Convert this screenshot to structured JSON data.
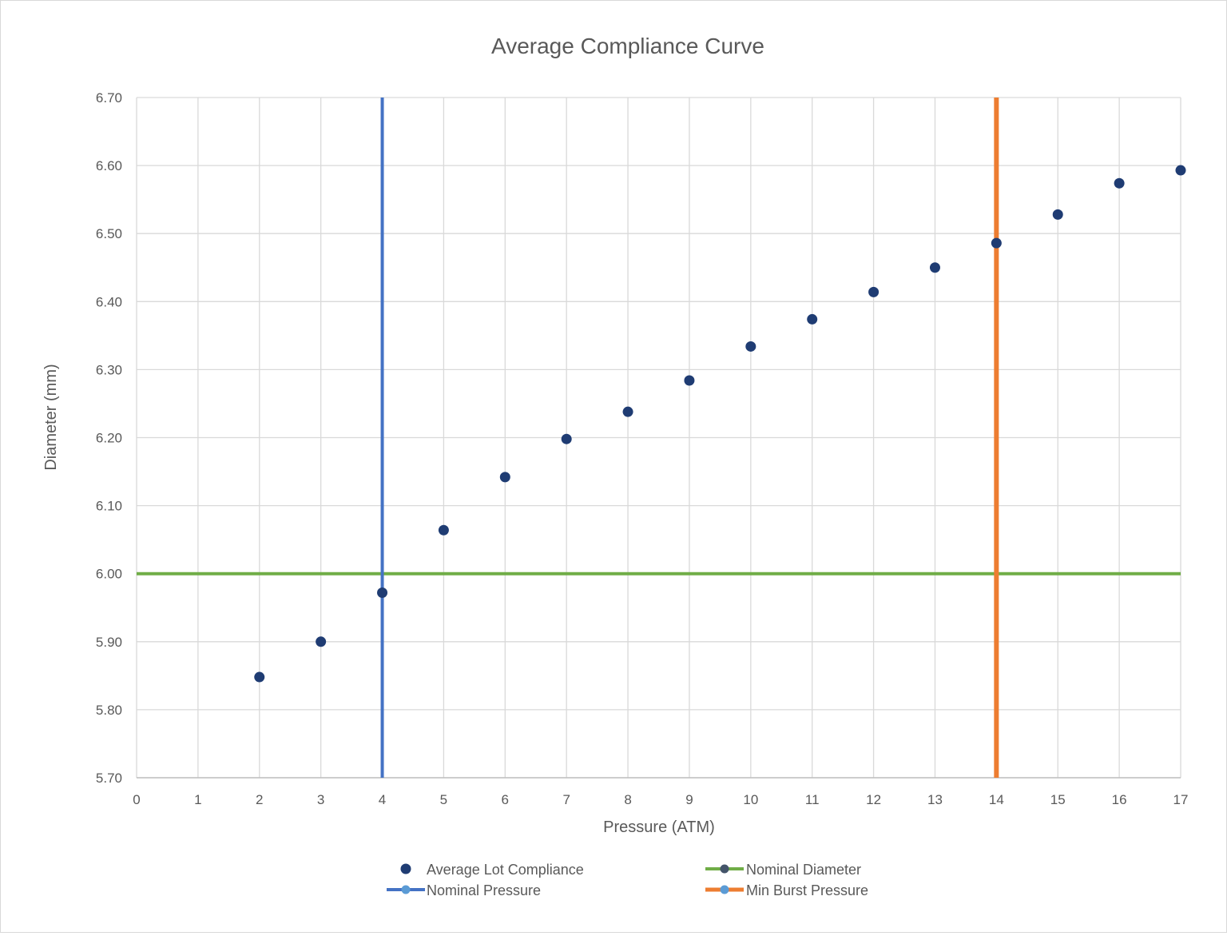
{
  "chart_data": {
    "type": "scatter",
    "title": "Average Compliance Curve",
    "xlabel": "Pressure (ATM)",
    "ylabel": "Diameter (mm)",
    "xlim": [
      0,
      17
    ],
    "ylim": [
      5.7,
      6.7
    ],
    "x_ticks": [
      "0",
      "1",
      "2",
      "3",
      "4",
      "5",
      "6",
      "7",
      "8",
      "9",
      "10",
      "11",
      "12",
      "13",
      "14",
      "15",
      "16",
      "17"
    ],
    "y_ticks": [
      "5.70",
      "5.80",
      "5.90",
      "6.00",
      "6.10",
      "6.20",
      "6.30",
      "6.40",
      "6.50",
      "6.60",
      "6.70"
    ],
    "grid": true,
    "legend_position": "bottom",
    "series": [
      {
        "name": "Average Lot Compliance",
        "kind": "markers",
        "color": "#1f3c73",
        "x": [
          2,
          3,
          4,
          5,
          6,
          7,
          8,
          9,
          10,
          11,
          12,
          13,
          14,
          15,
          16,
          17
        ],
        "y": [
          5.848,
          5.9,
          5.972,
          6.064,
          6.142,
          6.198,
          6.238,
          6.284,
          6.334,
          6.374,
          6.414,
          6.45,
          6.486,
          6.528,
          6.574,
          6.593
        ]
      },
      {
        "name": "Nominal Diameter",
        "kind": "hline",
        "color": "#70ad47",
        "y": 6.0
      },
      {
        "name": "Nominal Pressure",
        "kind": "vline",
        "color": "#4472c4",
        "x": 4
      },
      {
        "name": "Min Burst Pressure",
        "kind": "vline",
        "color": "#ed7d31",
        "x": 14
      }
    ]
  }
}
